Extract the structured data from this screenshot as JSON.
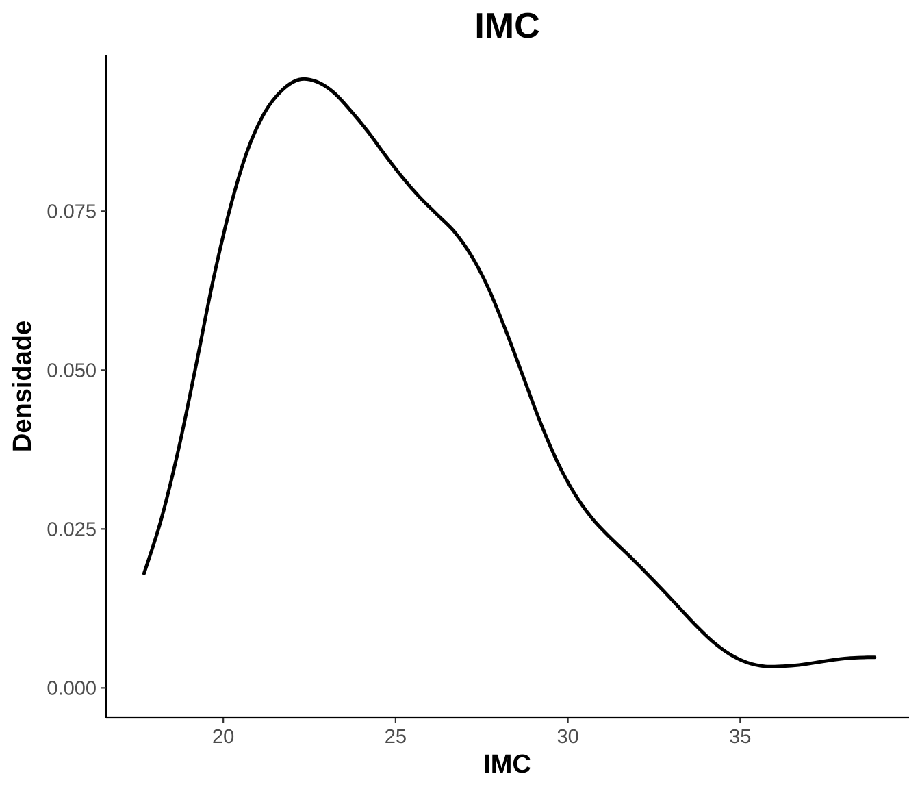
{
  "chart_data": {
    "type": "line",
    "title": "IMC",
    "xlabel": "IMC",
    "ylabel": "Densidade",
    "xlim": [
      16.6,
      39.9
    ],
    "ylim": [
      -0.0047,
      0.0996
    ],
    "x_ticks": [
      20,
      25,
      30,
      35
    ],
    "x_tick_labels": [
      "20",
      "25",
      "30",
      "35"
    ],
    "y_ticks": [
      0.0,
      0.025,
      0.05,
      0.075
    ],
    "y_tick_labels": [
      "0.000",
      "0.025",
      "0.050",
      "0.075"
    ],
    "grid": false,
    "legend": "none",
    "colors": {
      "line": "#000000",
      "axis": "#000000",
      "tick_text": "#4d4d4d"
    },
    "series": [
      {
        "x": [
          17.7,
          18.2,
          18.7,
          19.2,
          19.7,
          20.2,
          20.7,
          21.2,
          21.7,
          22.2,
          22.7,
          23.2,
          23.7,
          24.2,
          24.7,
          25.2,
          25.7,
          26.2,
          26.7,
          27.2,
          27.7,
          28.2,
          28.7,
          29.2,
          29.7,
          30.2,
          30.7,
          31.2,
          31.7,
          32.2,
          32.7,
          33.2,
          33.7,
          34.2,
          34.7,
          35.2,
          35.7,
          36.2,
          36.7,
          37.2,
          37.7,
          38.2,
          38.7,
          38.9
        ],
        "values": [
          0.018,
          0.0265,
          0.0375,
          0.0505,
          0.064,
          0.0755,
          0.0845,
          0.0905,
          0.094,
          0.0957,
          0.0954,
          0.0937,
          0.0908,
          0.0875,
          0.0838,
          0.0803,
          0.0772,
          0.0745,
          0.0718,
          0.068,
          0.0628,
          0.0562,
          0.049,
          0.0418,
          0.0355,
          0.0305,
          0.0267,
          0.0238,
          0.0212,
          0.0185,
          0.0157,
          0.0128,
          0.0099,
          0.0073,
          0.0053,
          0.004,
          0.0034,
          0.0034,
          0.0036,
          0.004,
          0.0044,
          0.0047,
          0.0048,
          0.0048
        ]
      }
    ]
  }
}
